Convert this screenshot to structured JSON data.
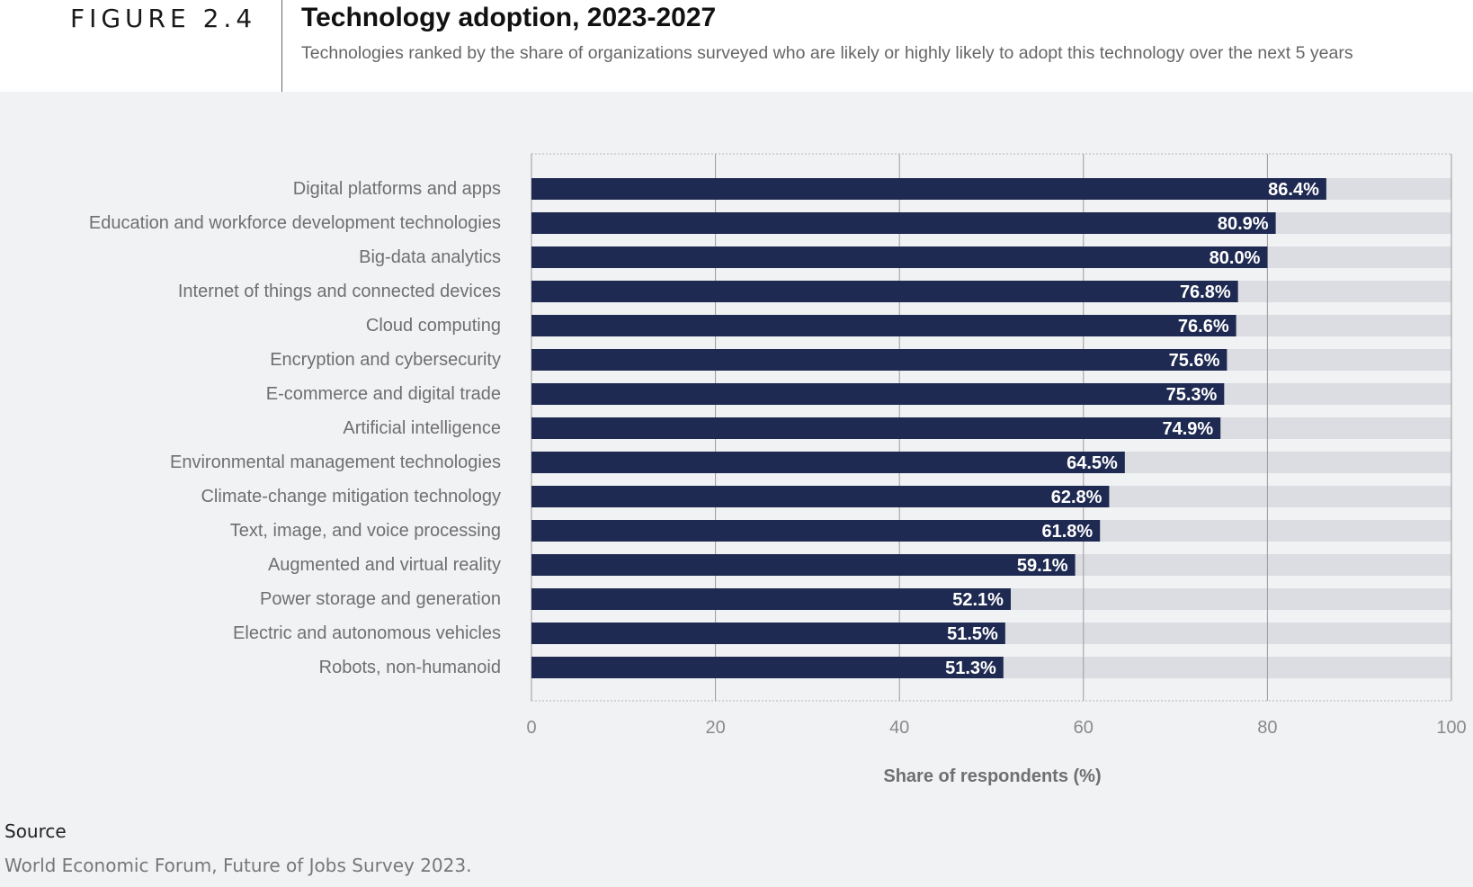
{
  "header": {
    "figure_label": "FIGURE 2.4",
    "title": "Technology adoption, 2023-2027",
    "subtitle": "Technologies ranked by the share of organizations surveyed who are likely or highly likely to adopt this technology over the next 5 years"
  },
  "chart_data": {
    "type": "bar",
    "orientation": "horizontal",
    "title": "Technology adoption, 2023-2027",
    "xlabel": "Share of respondents (%)",
    "ylabel": "",
    "xlim": [
      0,
      100
    ],
    "xticks": [
      0,
      20,
      40,
      60,
      80,
      100
    ],
    "grid": true,
    "categories": [
      "Digital platforms and apps",
      "Education and workforce development technologies",
      "Big-data analytics",
      "Internet of things and connected devices",
      "Cloud computing",
      "Encryption and cybersecurity",
      "E-commerce and digital trade",
      "Artificial intelligence",
      "Environmental management technologies",
      "Climate-change mitigation technology",
      "Text, image, and voice processing",
      "Augmented and virtual reality",
      "Power storage and generation",
      "Electric and autonomous vehicles",
      "Robots, non-humanoid"
    ],
    "values": [
      86.4,
      80.9,
      80.0,
      76.8,
      76.6,
      75.6,
      75.3,
      74.9,
      64.5,
      62.8,
      61.8,
      59.1,
      52.1,
      51.5,
      51.3
    ],
    "value_labels": [
      "86.4%",
      "80.9%",
      "80.0%",
      "76.8%",
      "76.6%",
      "75.6%",
      "75.3%",
      "74.9%",
      "64.5%",
      "62.8%",
      "61.8%",
      "59.1%",
      "52.1%",
      "51.5%",
      "51.3%"
    ],
    "colors": {
      "bar": "#1f2a52",
      "track": "#dcdde2",
      "grid": "#9a9a9a",
      "label": "#6f6f6f",
      "value_label": "#ffffff"
    }
  },
  "source": {
    "label": "Source",
    "text": "World Economic Forum, Future of Jobs Survey 2023."
  }
}
